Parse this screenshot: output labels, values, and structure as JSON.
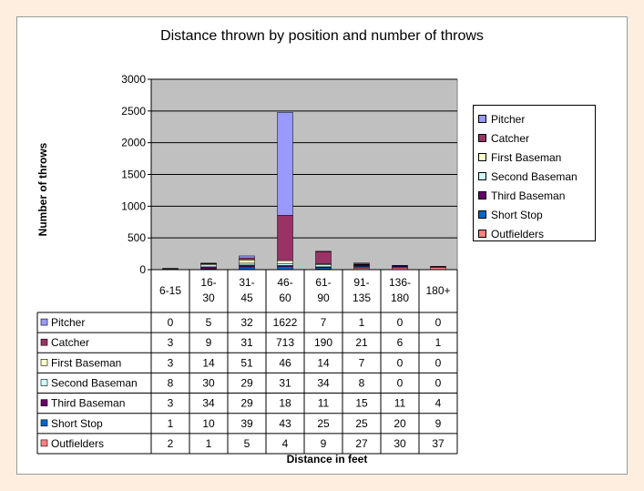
{
  "chart_data": {
    "type": "bar",
    "stacked": true,
    "title": "Distance thrown by position and number of throws",
    "xlabel": "Distance in feet",
    "ylabel": "Number of throws",
    "ylim": [
      0,
      3000
    ],
    "yticks": [
      0,
      500,
      1000,
      1500,
      2000,
      2500,
      3000
    ],
    "grid": true,
    "legend": "right",
    "data_table": true,
    "categories": [
      "6-15",
      "16-30",
      "31-45",
      "46-60",
      "61-90",
      "91-135",
      "136-180",
      "180+"
    ],
    "series": [
      {
        "name": "Pitcher",
        "color": "#9999ff",
        "values": [
          0,
          5,
          32,
          1622,
          7,
          1,
          0,
          0
        ]
      },
      {
        "name": "Catcher",
        "color": "#993366",
        "values": [
          3,
          9,
          31,
          713,
          190,
          21,
          6,
          1
        ]
      },
      {
        "name": "First Baseman",
        "color": "#ffffcc",
        "values": [
          3,
          14,
          51,
          46,
          14,
          7,
          0,
          0
        ]
      },
      {
        "name": "Second Baseman",
        "color": "#ccffff",
        "values": [
          8,
          30,
          29,
          31,
          34,
          8,
          0,
          0
        ]
      },
      {
        "name": "Third Baseman",
        "color": "#660066",
        "values": [
          3,
          34,
          29,
          18,
          11,
          15,
          11,
          4
        ]
      },
      {
        "name": "Short Stop",
        "color": "#0066cc",
        "values": [
          1,
          10,
          39,
          43,
          25,
          25,
          20,
          9
        ]
      },
      {
        "name": "Outfielders",
        "color": "#ff8080",
        "values": [
          2,
          1,
          5,
          4,
          9,
          27,
          30,
          37
        ]
      }
    ]
  },
  "style": {
    "plot_bg": "#c0c0c0",
    "page_bg": "#fdeee0"
  }
}
